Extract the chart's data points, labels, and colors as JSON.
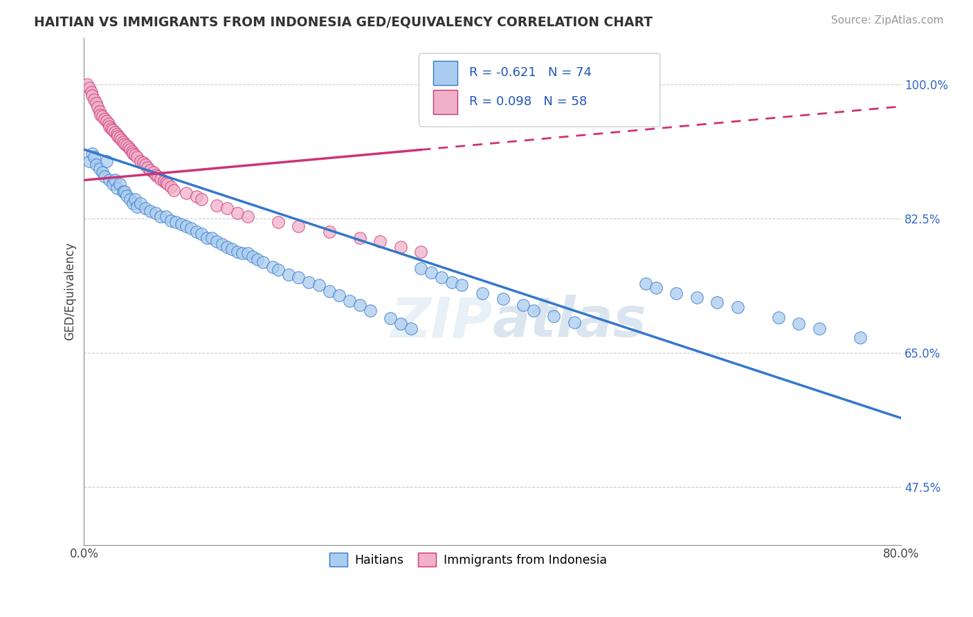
{
  "title": "HAITIAN VS IMMIGRANTS FROM INDONESIA GED/EQUIVALENCY CORRELATION CHART",
  "source": "Source: ZipAtlas.com",
  "ylabel": "GED/Equivalency",
  "ytick_vals": [
    0.475,
    0.65,
    0.825,
    1.0
  ],
  "ytick_labels": [
    "47.5%",
    "65.0%",
    "82.5%",
    "100.0%"
  ],
  "xmin": 0.0,
  "xmax": 0.8,
  "ymin": 0.4,
  "ymax": 1.06,
  "watermark": "ZIPatlas",
  "color_haiti": "#aaccee",
  "color_indonesia": "#f0b0c8",
  "line_color_haiti": "#3377cc",
  "line_color_indonesia": "#cc3377",
  "background_color": "#ffffff",
  "grid_color": "#cccccc",
  "haiti_line_y0": 0.915,
  "haiti_line_y1": 0.565,
  "indonesia_line_y0": 0.875,
  "indonesia_line_slope": 0.12
}
